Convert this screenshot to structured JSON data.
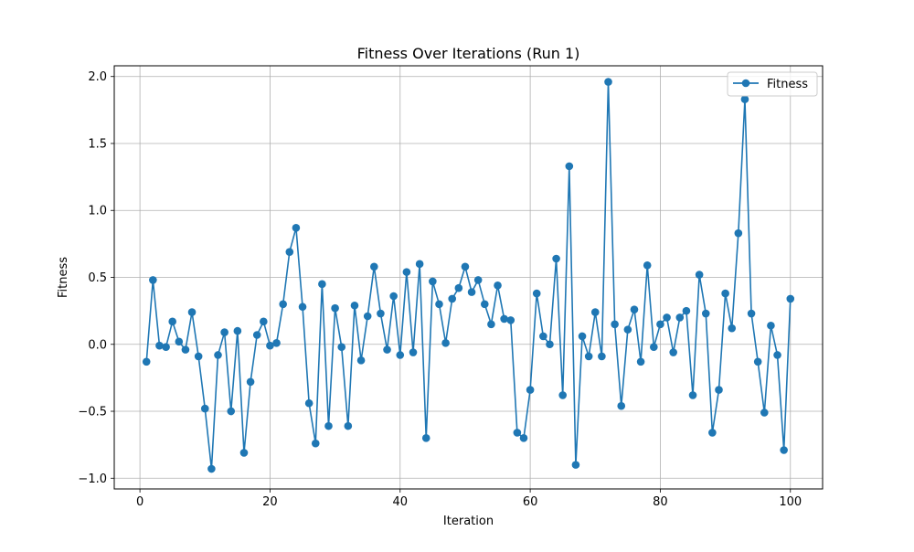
{
  "chart_data": {
    "type": "line",
    "title": "Fitness Over Iterations (Run 1)",
    "xlabel": "Iteration",
    "ylabel": "Fitness",
    "xlim": [
      -3.95,
      104.95
    ],
    "ylim": [
      -1.08,
      2.08
    ],
    "xticks": [
      0,
      20,
      40,
      60,
      80,
      100
    ],
    "xtick_labels": [
      "0",
      "20",
      "40",
      "60",
      "80",
      "100"
    ],
    "yticks": [
      -1.0,
      -0.5,
      0.0,
      0.5,
      1.0,
      1.5,
      2.0
    ],
    "ytick_labels": [
      "−1.0",
      "−0.5",
      "0.0",
      "0.5",
      "1.0",
      "1.5",
      "2.0"
    ],
    "grid": true,
    "legend_position": "upper-right",
    "colors": {
      "series": "#1f77b4",
      "grid": "#b0b0b0",
      "axes": "#000000"
    },
    "series": [
      {
        "name": "Fitness",
        "marker": "circle",
        "x": [
          1,
          2,
          3,
          4,
          5,
          6,
          7,
          8,
          9,
          10,
          11,
          12,
          13,
          14,
          15,
          16,
          17,
          18,
          19,
          20,
          21,
          22,
          23,
          24,
          25,
          26,
          27,
          28,
          29,
          30,
          31,
          32,
          33,
          34,
          35,
          36,
          37,
          38,
          39,
          40,
          41,
          42,
          43,
          44,
          45,
          46,
          47,
          48,
          49,
          50,
          51,
          52,
          53,
          54,
          55,
          56,
          57,
          58,
          59,
          60,
          61,
          62,
          63,
          64,
          65,
          66,
          67,
          68,
          69,
          70,
          71,
          72,
          73,
          74,
          75,
          76,
          77,
          78,
          79,
          80,
          81,
          82,
          83,
          84,
          85,
          86,
          87,
          88,
          89,
          90,
          91,
          92,
          93,
          94,
          95,
          96,
          97,
          98,
          99,
          100
        ],
        "y": [
          -0.13,
          0.48,
          -0.01,
          -0.02,
          0.17,
          0.02,
          -0.04,
          0.24,
          -0.09,
          -0.48,
          -0.93,
          -0.08,
          0.09,
          -0.5,
          0.1,
          -0.81,
          -0.28,
          0.07,
          0.17,
          -0.01,
          0.01,
          0.3,
          0.69,
          0.87,
          0.28,
          -0.44,
          -0.74,
          0.45,
          -0.61,
          0.27,
          -0.02,
          -0.61,
          0.29,
          -0.12,
          0.21,
          0.58,
          0.23,
          -0.04,
          0.36,
          -0.08,
          0.54,
          -0.06,
          0.6,
          -0.7,
          0.47,
          0.3,
          0.01,
          0.34,
          0.42,
          0.58,
          0.39,
          0.48,
          0.3,
          0.15,
          0.44,
          0.19,
          0.18,
          -0.66,
          -0.7,
          -0.34,
          0.38,
          0.06,
          0.0,
          0.64,
          -0.38,
          1.33,
          -0.9,
          0.06,
          -0.09,
          0.24,
          -0.09,
          1.96,
          0.15,
          -0.46,
          0.11,
          0.26,
          -0.13,
          0.59,
          -0.02,
          0.15,
          0.2,
          -0.06,
          0.2,
          0.25,
          -0.38,
          0.52,
          0.23,
          -0.66,
          -0.34,
          0.38,
          0.12,
          0.83,
          1.83,
          0.23,
          -0.13,
          -0.51,
          0.14,
          -0.08,
          -0.79,
          0.34
        ]
      }
    ]
  }
}
